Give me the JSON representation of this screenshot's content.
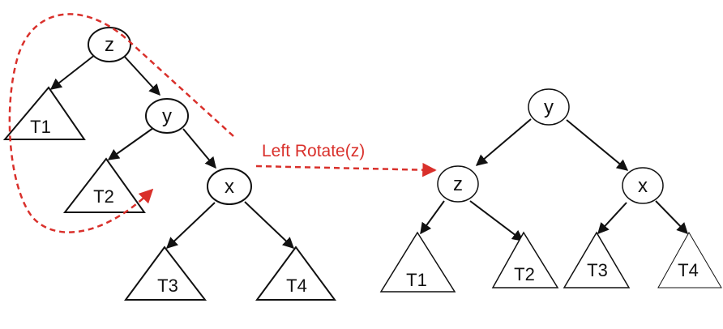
{
  "left_tree": {
    "nodes": {
      "z": "z",
      "y": "y",
      "x": "x"
    },
    "subtrees": {
      "t1": "T1",
      "t2": "T2",
      "t3": "T3",
      "t4": "T4"
    }
  },
  "operation": {
    "label": "Left Rotate(z)"
  },
  "right_tree": {
    "nodes": {
      "y": "y",
      "z": "z",
      "x": "x"
    },
    "subtrees": {
      "t1": "T1",
      "t2": "T2",
      "t3": "T3",
      "t4": "T4"
    }
  },
  "colors": {
    "annotation": "#d9302b",
    "stroke": "#111111"
  }
}
